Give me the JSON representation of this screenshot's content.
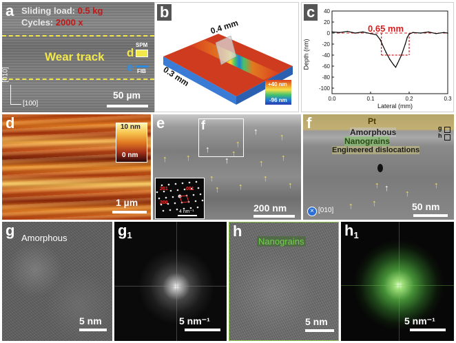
{
  "panels": {
    "a": {
      "label": "a",
      "load_prefix": "Sliding load: ",
      "load_value": "0.5 kg",
      "cycles_prefix": "Cycles: ",
      "cycles_value": "2000 x",
      "track_label": "Wear track",
      "marker_d": "d",
      "marker_e": "e",
      "spm_label": "SPM",
      "fib_label": "FIB",
      "axis_vertical": "[010]",
      "axis_horizontal": "[100]",
      "scale_text": "50 µm"
    },
    "b": {
      "label": "b",
      "length_label": "0.4 mm",
      "width_label": "0.3 mm",
      "colorbar_max": "+40 nm",
      "colorbar_min": "-96 nm"
    },
    "c": {
      "label": "c",
      "width_annotation": "0.65 mm",
      "ylabel": "Depth (nm)",
      "xlabel": "Lateral (mm)"
    },
    "d": {
      "label": "d",
      "colorbar_max": "10 nm",
      "colorbar_min": "0 nm",
      "scale_text": "1 µm"
    },
    "e": {
      "label": "e",
      "inset_label": "f",
      "diff_201": "201",
      "diff_001": "001",
      "diff_200": "200",
      "inset_scale": "4 nm⁻¹",
      "scale_text": "200 nm"
    },
    "f": {
      "label": "f",
      "pt_label": "Pt",
      "amorphous_label": "Amorphous",
      "nanograins_label": "Nanograins",
      "dislocations_label": "Engineered dislocations",
      "marker_g": "g",
      "marker_h": "h",
      "zone_axis": "[010]",
      "scale_text": "50 nm"
    },
    "g": {
      "label": "g",
      "title": "Amorphous",
      "scale_text": "5 nm"
    },
    "g1": {
      "label": "g",
      "label_sub": "1",
      "scale_text": "5 nm⁻¹"
    },
    "h": {
      "label": "h",
      "title": "Nanograins",
      "scale_text": "5 nm"
    },
    "h1": {
      "label": "h",
      "label_sub": "1",
      "scale_text": "5 nm⁻¹"
    }
  },
  "chart_data": {
    "type": "line",
    "xlabel": "Lateral (mm)",
    "ylabel": "Depth (nm)",
    "xlim": [
      0.0,
      0.3
    ],
    "ylim": [
      -110,
      40
    ],
    "xticks": [
      "0.0",
      "0.1",
      "0.2",
      "0.3"
    ],
    "yticks": [
      "40",
      "20",
      "0",
      "-20",
      "-40",
      "-60",
      "-80",
      "-100"
    ],
    "x": [
      0.0,
      0.02,
      0.04,
      0.06,
      0.08,
      0.1,
      0.115,
      0.125,
      0.13,
      0.14,
      0.15,
      0.16,
      0.165,
      0.17,
      0.18,
      0.19,
      0.195,
      0.2,
      0.21,
      0.23,
      0.25,
      0.27,
      0.29,
      0.3
    ],
    "y": [
      2,
      1,
      3,
      0,
      2,
      -1,
      -3,
      -12,
      -20,
      -35,
      -48,
      -58,
      -62,
      -55,
      -40,
      -20,
      -8,
      -2,
      1,
      0,
      2,
      -1,
      1,
      0
    ],
    "annotation": "0.65 mm",
    "grid": false
  },
  "colors": {
    "yellow_annotation": "#f2e84a",
    "red_annotation": "#d21f1f",
    "green_annotation": "#64c84e"
  }
}
